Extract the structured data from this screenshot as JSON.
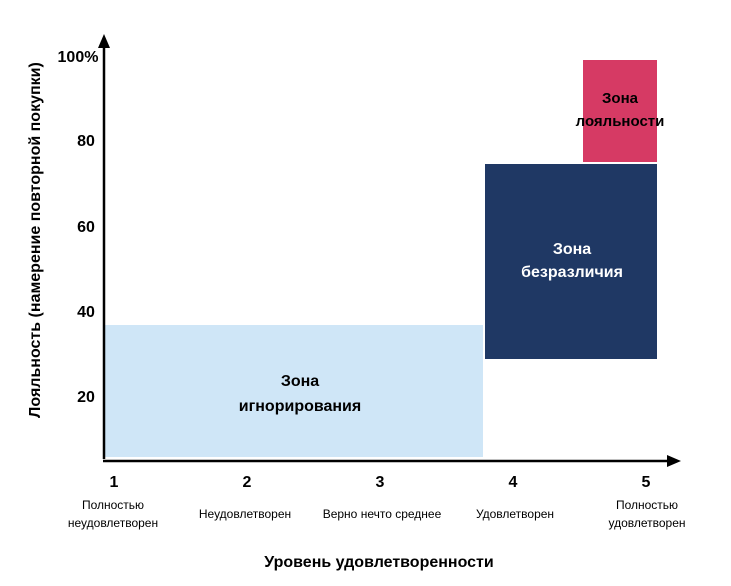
{
  "colors": {
    "ignore_zone": "#cfe6f7",
    "indifference_zone": "#1f3864",
    "loyalty_zone": "#d63a64",
    "axis": "#000000"
  },
  "y_axis": {
    "title": "Лояльность (намерение повторной покупки)",
    "ticks": [
      {
        "value": 100,
        "label": "100%"
      },
      {
        "value": 80,
        "label": "80"
      },
      {
        "value": 60,
        "label": "60"
      },
      {
        "value": 40,
        "label": "40"
      },
      {
        "value": 20,
        "label": "20"
      }
    ]
  },
  "x_axis": {
    "title": "Уровень удовлетворенности",
    "ticks": [
      {
        "value": 1,
        "number": "1",
        "line1": "Полностью",
        "line2": "неудовлетворен"
      },
      {
        "value": 2,
        "number": "2",
        "line1": "Неудовлетворен",
        "line2": ""
      },
      {
        "value": 3,
        "number": "3",
        "line1": "Верно нечто среднее",
        "line2": ""
      },
      {
        "value": 4,
        "number": "4",
        "line1": "Удовлетворен",
        "line2": ""
      },
      {
        "value": 5,
        "number": "5",
        "line1": "Полностью",
        "line2": "удовлетворен"
      }
    ]
  },
  "zones": {
    "ignore": {
      "line1": "Зона",
      "line2": "игнорирования"
    },
    "indifference": {
      "line1": "Зона",
      "line2": "безразличия"
    },
    "loyalty": {
      "line1": "Зона",
      "line2": "лояльности"
    }
  }
}
